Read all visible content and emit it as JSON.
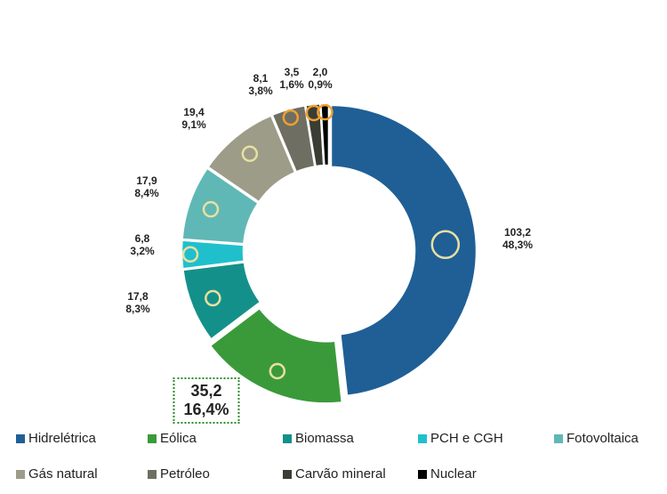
{
  "chart_data": {
    "type": "pie",
    "donut": true,
    "start": "top",
    "direction": "clockwise",
    "legend_position": "bottom",
    "slices": [
      {
        "name": "Hidrelétrica",
        "value": 103.2,
        "value_label": "103,2",
        "pct_label": "48,3%",
        "color": "#1f5f96",
        "icon": "hydro-icon"
      },
      {
        "name": "Eólica",
        "value": 35.2,
        "value_label": "35,2",
        "pct_label": "16,4%",
        "color": "#3a9a3a",
        "icon": "wind-turbine-icon",
        "highlighted": true
      },
      {
        "name": "Biomassa",
        "value": 17.8,
        "value_label": "17,8",
        "pct_label": "8,3%",
        "color": "#14908a",
        "icon": "biomass-plant-icon"
      },
      {
        "name": "PCH e CGH",
        "value": 6.8,
        "value_label": "6,8",
        "pct_label": "3,2%",
        "color": "#1fc0cc",
        "icon": "water-energy-icon"
      },
      {
        "name": "Fotovoltaica",
        "value": 17.9,
        "value_label": "17,9",
        "pct_label": "8,4%",
        "color": "#5fb8b5",
        "icon": "solar-panel-icon"
      },
      {
        "name": "Gás natural",
        "value": 19.4,
        "value_label": "19,4",
        "pct_label": "9,1%",
        "color": "#9c9c88",
        "icon": "flame-icon"
      },
      {
        "name": "Petróleo",
        "value": 8.1,
        "value_label": "8,1",
        "pct_label": "3,8%",
        "color": "#6e6e62",
        "icon": "oil-barrel-icon"
      },
      {
        "name": "Carvão mineral",
        "value": 3.5,
        "value_label": "3,5",
        "pct_label": "1,6%",
        "color": "#3a3d33",
        "icon": "coal-cart-icon"
      },
      {
        "name": "Nuclear",
        "value": 2.0,
        "value_label": "2,0",
        "pct_label": "0,9%",
        "color": "#000000",
        "icon": "radiation-icon"
      }
    ]
  }
}
